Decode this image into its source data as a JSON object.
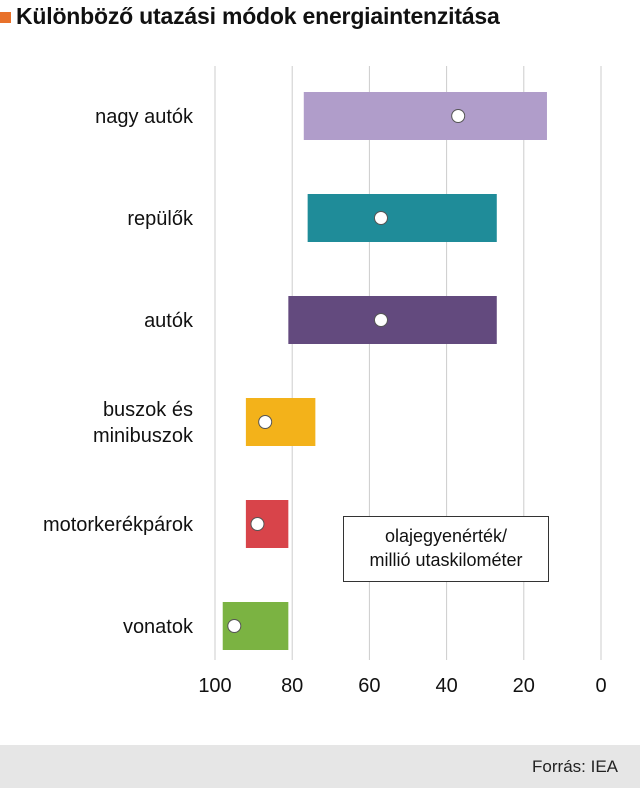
{
  "title": "Különböző utazási módok energiaintenzitása",
  "colors": {
    "accent": "#e8712a",
    "grid": "#cccccc",
    "footer_bg": "#e6e6e6"
  },
  "unit_label": [
    "olajegyenérték/",
    "millió utaskilométer"
  ],
  "source": "Forrás: IEA",
  "chart_data": {
    "type": "bar",
    "orientation": "horizontal",
    "x_reversed": true,
    "xlim": [
      100,
      0
    ],
    "xticks": [
      100,
      80,
      60,
      40,
      20,
      0
    ],
    "grid": true,
    "categories": [
      {
        "label": [
          "nagy autók"
        ],
        "min": 14,
        "max": 77,
        "marker": 37,
        "color": "#b09dca"
      },
      {
        "label": [
          "repülők"
        ],
        "min": 27,
        "max": 76,
        "marker": 57,
        "color": "#1f8c99"
      },
      {
        "label": [
          "autók"
        ],
        "min": 27,
        "max": 81,
        "marker": 57,
        "color": "#634a7e"
      },
      {
        "label": [
          "buszok és",
          "minibuszok"
        ],
        "min": 74,
        "max": 92,
        "marker": 87,
        "color": "#f3b21a"
      },
      {
        "label": [
          "motorkerékpárok"
        ],
        "min": 81,
        "max": 92,
        "marker": 89,
        "color": "#d8444a"
      },
      {
        "label": [
          "vonatok"
        ],
        "min": 81,
        "max": 98,
        "marker": 95,
        "color": "#7bb342"
      }
    ]
  }
}
